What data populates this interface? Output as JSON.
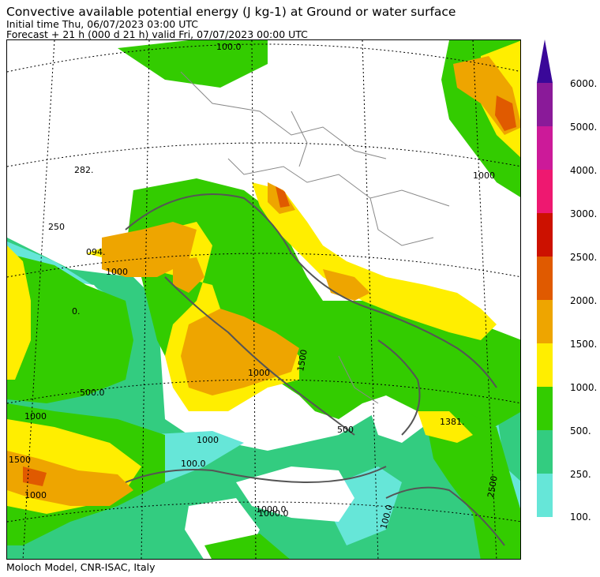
{
  "header": {
    "title": "Convective available potential energy (J kg-1) at Ground or water surface",
    "initial_time": "Initial time  Thu, 06/07/2023  03:00 UTC",
    "forecast": "Forecast  +  21 h  (000 d 21 h)  valid Fri, 07/07/2023 00:00 UTC"
  },
  "footer": "Moloch Model, CNR-ISAC, Italy",
  "legend": {
    "levels": [
      "100.",
      "250.",
      "500.",
      "1000.",
      "1500.",
      "2000.",
      "2500.",
      "3000.",
      "4000.",
      "5000.",
      "6000."
    ],
    "colors": [
      "#66e6d8",
      "#33cc80",
      "#33cc00",
      "#ffee00",
      "#eea500",
      "#e05a00",
      "#cc1100",
      "#ee1870",
      "#cc1a99",
      "#8a1a99",
      "#3a0899"
    ]
  },
  "contour_labels": [
    "100.0",
    "282.",
    "250",
    "094.",
    "1000",
    "0.",
    "500.0",
    "1000",
    "1500",
    "1500",
    "1000",
    "1000",
    "1381.",
    "1000",
    "100.0",
    "1000.0",
    "500",
    "1000",
    "1000.0",
    "2500",
    "100.0"
  ]
}
